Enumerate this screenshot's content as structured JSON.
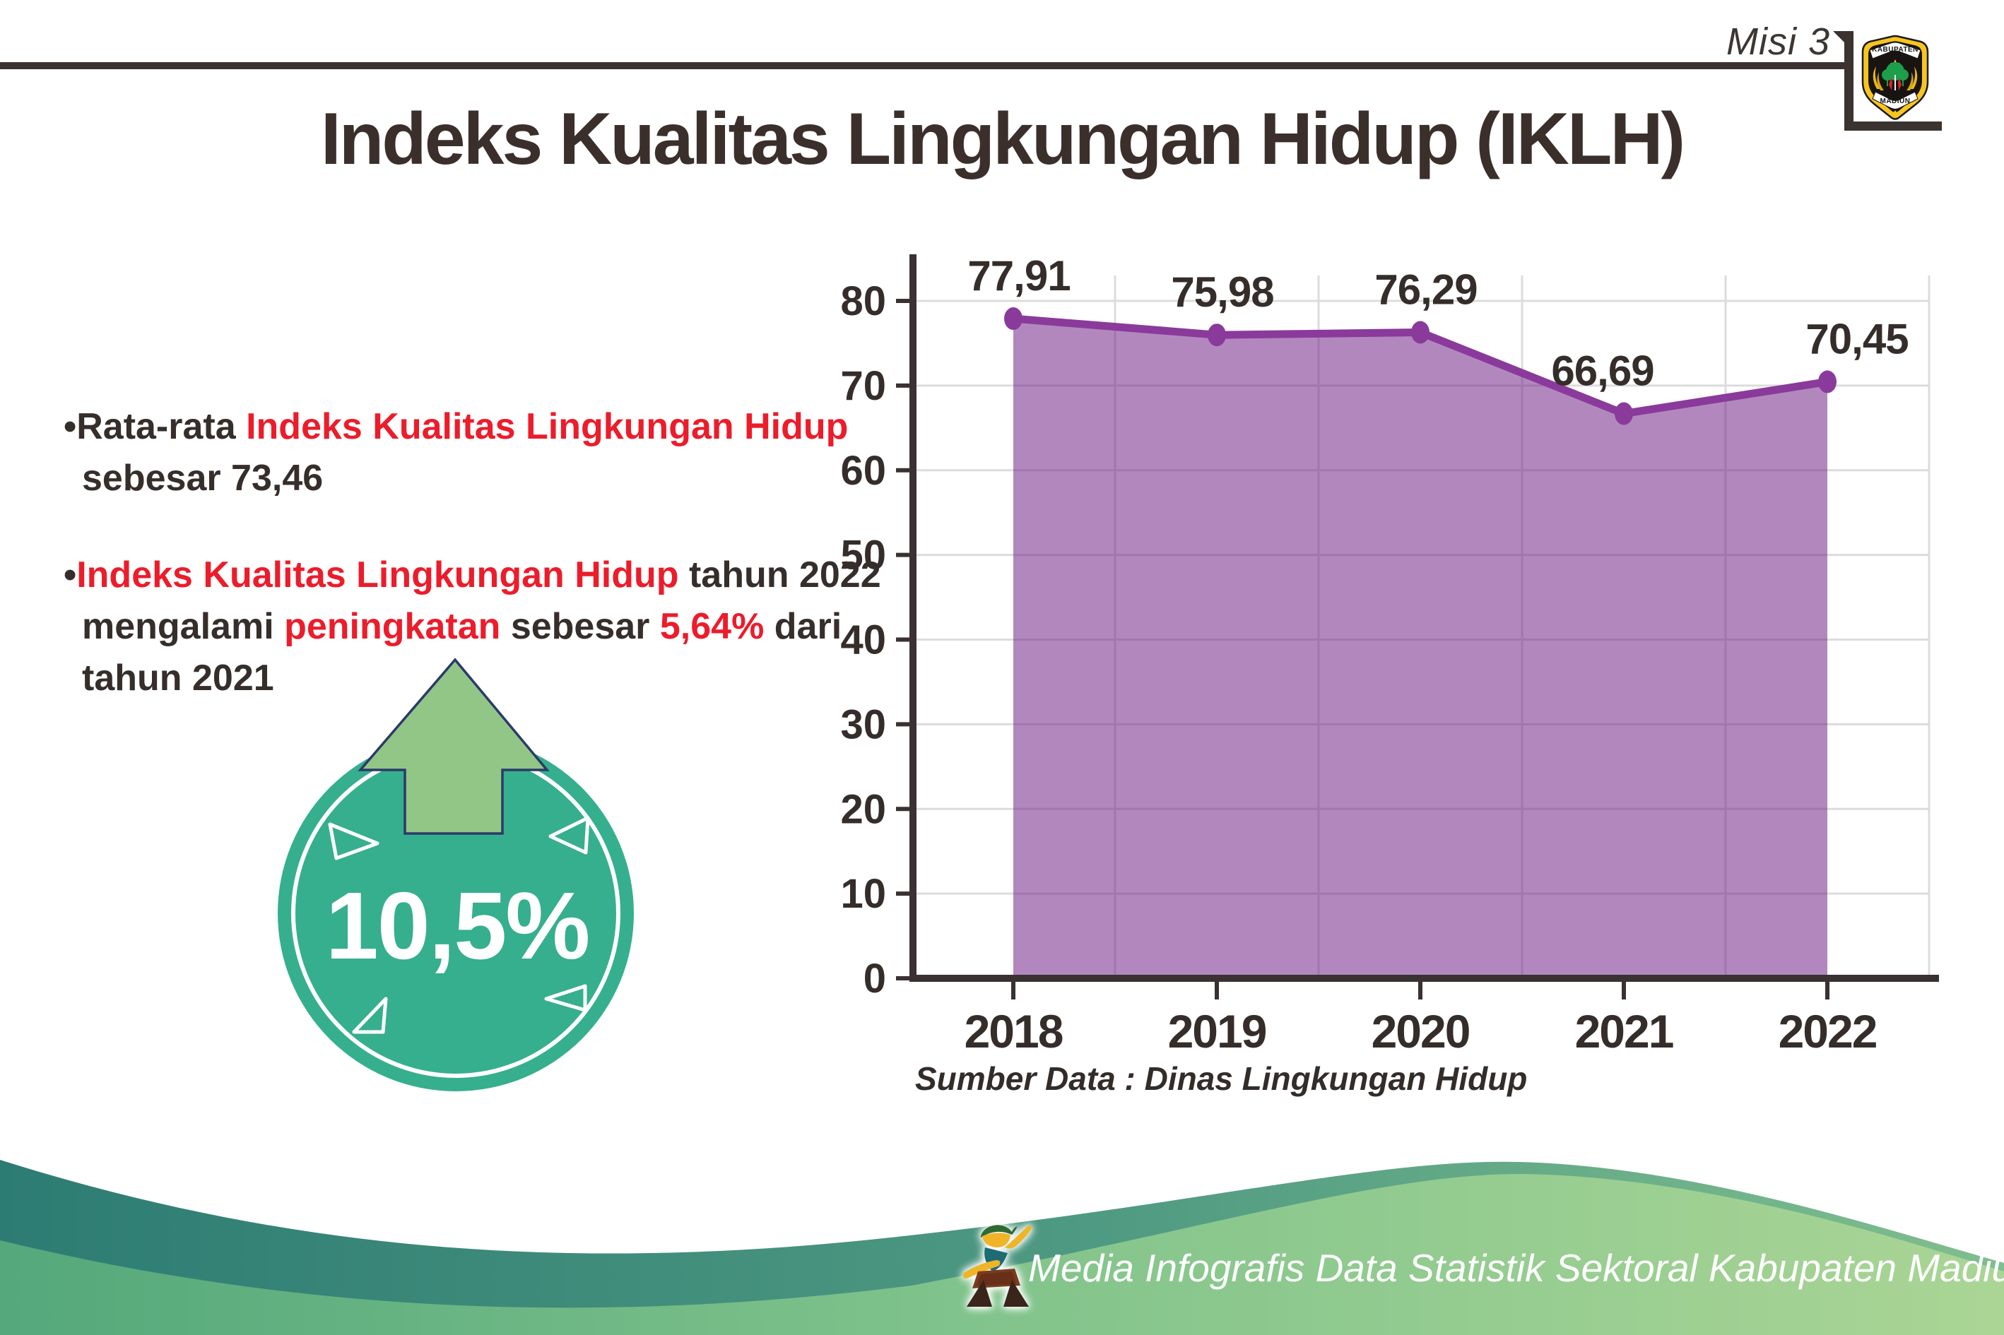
{
  "header": {
    "misi_label": "Misi 3",
    "logo": {
      "top_text": "KABUPATEN",
      "bottom_text": "MADIUN"
    }
  },
  "title": "Indeks Kualitas Lingkungan Hidup (IKLH)",
  "colors": {
    "accent_red": "#ec1c2b",
    "text_dark": "#362e2b",
    "badge_teal": "#36af8e",
    "arrow_green": "#92c687",
    "arrow_outline_navy": "#2b3a68",
    "chart_line_purple": "#8a3a9b",
    "chart_fill_purple": "#b287be",
    "footer_teal": "#2d7c73",
    "footer_green": "#a8d394"
  },
  "bullets": [
    {
      "marker": "•",
      "lines": [
        [
          {
            "text": "Rata-rata ",
            "red": false
          },
          {
            "text": "Indeks Kualitas Lingkungan Hidup",
            "red": true
          }
        ],
        [
          {
            "text": "sebesar 73,46",
            "red": false
          }
        ]
      ]
    },
    {
      "marker": "•",
      "lines": [
        [
          {
            "text": "Indeks Kualitas Lingkungan Hidup",
            "red": true
          },
          {
            "text": " tahun 2022",
            "red": false
          }
        ],
        [
          {
            "text": "mengalami ",
            "red": false
          },
          {
            "text": "peningkatan",
            "red": true
          },
          {
            "text": " sebesar ",
            "red": false
          },
          {
            "text": "5,64%",
            "red": true
          },
          {
            "text": " dari",
            "red": false
          }
        ],
        [
          {
            "text": "tahun 2021",
            "red": false
          }
        ]
      ]
    }
  ],
  "badge": {
    "value": "10,5%"
  },
  "chart_data": {
    "type": "area",
    "title": "Indeks Kualitas Lingkungan Hidup (IKLH)",
    "categories": [
      "2018",
      "2019",
      "2020",
      "2021",
      "2022"
    ],
    "values": [
      77.91,
      75.98,
      76.29,
      66.69,
      70.45
    ],
    "point_labels": [
      "77,91",
      "75,98",
      "76,29",
      "66,69",
      "70,45"
    ],
    "ylim": [
      0,
      80
    ],
    "ytick_step": 10,
    "ytick_labels": [
      "0",
      "10",
      "20",
      "30",
      "40",
      "50",
      "60",
      "70",
      "80"
    ],
    "xlabel": "",
    "ylabel": "",
    "grid": true,
    "legend": false,
    "source_note": "Sumber Data : Dinas Lingkungan Hidup",
    "line_color": "#8a3a9b",
    "fill_color": "rgba(115,37,137,0.55)",
    "axis_color": "#3a3132",
    "grid_color": "#dcdcdc",
    "label_color": "#352d2a"
  },
  "footer": {
    "credit": "Media Infografis Data Statistik Sektoral Kabupaten Madiun |"
  }
}
